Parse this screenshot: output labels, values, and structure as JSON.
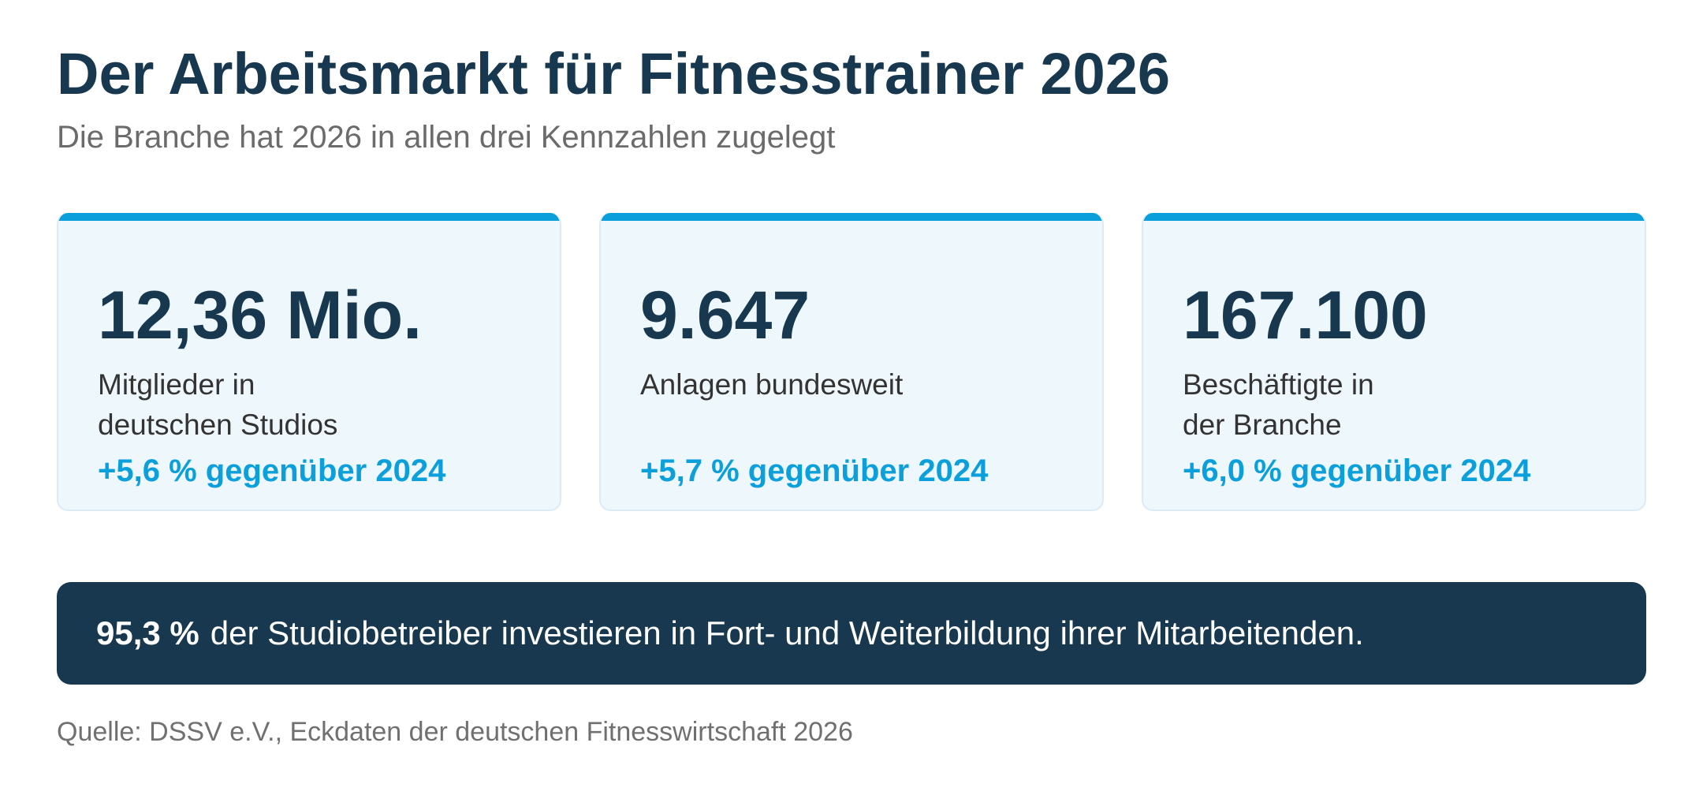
{
  "header": {
    "title": "Der Arbeitsmarkt für Fitnesstrainer 2026",
    "subtitle": "Die Branche hat 2026 in allen drei Kennzahlen zugelegt"
  },
  "kpis": [
    {
      "value": "12,36 Mio.",
      "label_lines": [
        "Mitglieder in",
        "deutschen Studios"
      ],
      "change": "+5,6 % gegenüber 2024"
    },
    {
      "value": "9.647",
      "label_lines": [
        "Anlagen bundesweit"
      ],
      "change": "+5,7 % gegenüber 2024"
    },
    {
      "value": "167.100",
      "label_lines": [
        "Beschäftigte in",
        "der Branche"
      ],
      "change": "+6,0 % gegenüber 2024"
    }
  ],
  "banner": {
    "stat": "95,3 %",
    "text": "der Studiobetreiber investieren in Fort- und Weiterbildung ihrer Mitarbeitenden."
  },
  "footer": {
    "source": "Quelle: DSSV e.V., Eckdaten der deutschen Fitnesswirtschaft 2026"
  },
  "colors": {
    "accent": "#0b9fdc",
    "navy": "#17384f",
    "card_background": "#eef7fc"
  }
}
